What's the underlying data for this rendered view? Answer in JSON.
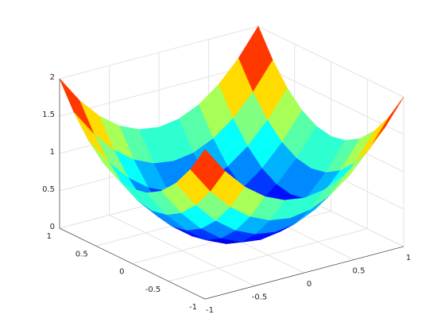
{
  "chart_data": {
    "type": "surface",
    "colormap": "jet",
    "grid": true,
    "x": [
      -1,
      -0.8,
      -0.6,
      -0.4,
      -0.2,
      0,
      0.2,
      0.4,
      0.6,
      0.8,
      1
    ],
    "y": [
      -1,
      -0.8,
      -0.6,
      -0.4,
      -0.2,
      0,
      0.2,
      0.4,
      0.6,
      0.8,
      1
    ],
    "z": [
      [
        2,
        1.64,
        1.36,
        1.16,
        1.04,
        1,
        1.04,
        1.16,
        1.36,
        1.64,
        2
      ],
      [
        1.64,
        1.28,
        1,
        0.8,
        0.68,
        0.64,
        0.68,
        0.8,
        1,
        1.28,
        1.64
      ],
      [
        1.36,
        1,
        0.72,
        0.52,
        0.4,
        0.36,
        0.4,
        0.52,
        0.72,
        1,
        1.36
      ],
      [
        1.16,
        0.8,
        0.52,
        0.32,
        0.2,
        0.16,
        0.2,
        0.32,
        0.52,
        0.8,
        1.16
      ],
      [
        1.04,
        0.68,
        0.4,
        0.2,
        0.08,
        0.04,
        0.08,
        0.2,
        0.4,
        0.68,
        1.04
      ],
      [
        1,
        0.64,
        0.36,
        0.16,
        0.04,
        0,
        0.04,
        0.16,
        0.36,
        0.64,
        1
      ],
      [
        1.04,
        0.68,
        0.4,
        0.2,
        0.08,
        0.04,
        0.08,
        0.2,
        0.4,
        0.68,
        1.04
      ],
      [
        1.16,
        0.8,
        0.52,
        0.32,
        0.2,
        0.16,
        0.2,
        0.32,
        0.52,
        0.8,
        1.16
      ],
      [
        1.36,
        1,
        0.72,
        0.52,
        0.4,
        0.36,
        0.4,
        0.52,
        0.72,
        1,
        1.36
      ],
      [
        1.64,
        1.28,
        1,
        0.8,
        0.68,
        0.64,
        0.68,
        0.8,
        1,
        1.28,
        1.64
      ],
      [
        2,
        1.64,
        1.36,
        1.16,
        1.04,
        1,
        1.04,
        1.16,
        1.36,
        1.64,
        2
      ]
    ],
    "xlim": [
      -1,
      1
    ],
    "ylim": [
      -1,
      1
    ],
    "zlim": [
      0,
      2
    ],
    "xticks": [
      -1,
      -0.5,
      0,
      0.5,
      1
    ],
    "yticks": [
      -1,
      -0.5,
      0,
      0.5,
      1
    ],
    "zticks": [
      0,
      0.5,
      1,
      1.5,
      2
    ]
  }
}
